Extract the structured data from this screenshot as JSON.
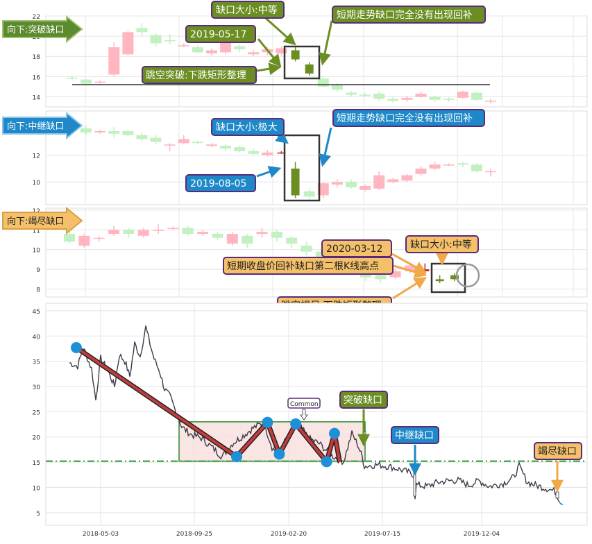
{
  "chart_data": [
    {
      "type": "candlestick",
      "panel": "top",
      "tag": "向下:突破缺口",
      "ylim": [
        13,
        22
      ],
      "yticks": [
        14,
        16,
        18,
        20,
        22
      ],
      "grid": true,
      "hline": 15.2,
      "candles": [
        [
          15.9,
          15.8,
          16.1,
          15.6
        ],
        [
          15.7,
          15.3,
          15.8,
          15.2
        ],
        [
          15.4,
          15.5,
          15.6,
          15.3
        ],
        [
          16.2,
          18.9,
          19.4,
          16.0
        ],
        [
          18.2,
          20.4,
          20.5,
          18.1
        ],
        [
          20.8,
          20.4,
          21.3,
          20.0
        ],
        [
          20.1,
          19.3,
          20.3,
          19.0
        ],
        [
          19.6,
          19.5,
          20.2,
          19.2
        ],
        [
          19.0,
          19.1,
          19.3,
          18.9
        ],
        [
          18.9,
          18.4,
          19.1,
          18.3
        ],
        [
          18.3,
          18.6,
          18.8,
          18.1
        ],
        [
          18.4,
          19.5,
          19.7,
          18.2
        ],
        [
          19.0,
          18.7,
          19.2,
          18.4
        ],
        [
          18.2,
          18.4,
          18.6,
          18.0
        ],
        [
          18.4,
          18.7,
          18.9,
          18.1
        ],
        [
          18.3,
          18.8,
          19.0,
          18.1
        ],
        [
          18.6,
          17.7,
          18.9,
          17.5
        ],
        [
          17.2,
          16.3,
          17.4,
          16.1
        ],
        [
          15.8,
          15.0,
          16.0,
          14.9
        ],
        [
          15.2,
          14.7,
          15.4,
          14.5
        ],
        [
          14.4,
          14.2,
          14.6,
          14.0
        ],
        [
          14.2,
          14.1,
          14.4,
          14.0
        ],
        [
          14.3,
          13.8,
          14.5,
          13.6
        ],
        [
          13.8,
          13.6,
          14.0,
          13.4
        ],
        [
          13.7,
          13.9,
          14.1,
          13.5
        ],
        [
          14.0,
          14.3,
          14.5,
          13.9
        ],
        [
          14.0,
          13.7,
          14.1,
          13.5
        ],
        [
          13.8,
          13.7,
          14.0,
          13.5
        ],
        [
          13.9,
          14.5,
          14.6,
          13.8
        ],
        [
          14.4,
          13.7,
          14.5,
          13.6
        ],
        [
          13.6,
          13.6,
          13.8,
          13.3
        ]
      ],
      "annotations": [
        "缺口大小:中等",
        "2019-05-17",
        "跳空突破:下跌矩形整理",
        "短期走势缺口完全没有出现回补"
      ]
    },
    {
      "type": "candlestick",
      "panel": "second",
      "tag": "向下:中继缺口",
      "ylim": [
        8.3,
        15.3
      ],
      "yticks": [
        10,
        12
      ],
      "grid": true,
      "candles": [
        [
          14.0,
          13.7,
          14.2,
          13.5
        ],
        [
          13.7,
          13.8,
          13.9,
          13.6
        ],
        [
          13.8,
          13.6,
          14.1,
          13.3
        ],
        [
          13.8,
          13.5,
          13.9,
          13.4
        ],
        [
          13.5,
          13.2,
          13.7,
          13.0
        ],
        [
          13.3,
          13.0,
          13.5,
          12.8
        ],
        [
          12.8,
          12.8,
          12.9,
          12.3
        ],
        [
          12.9,
          13.2,
          13.5,
          12.8
        ],
        [
          13.0,
          12.9,
          13.1,
          12.8
        ],
        [
          12.7,
          12.8,
          12.9,
          12.6
        ],
        [
          12.7,
          12.5,
          12.8,
          12.3
        ],
        [
          12.6,
          12.3,
          12.7,
          12.2
        ],
        [
          12.3,
          12.1,
          12.5,
          12.0
        ],
        [
          12.0,
          12.2,
          12.4,
          11.9
        ],
        [
          12.2,
          12.2,
          12.3,
          12.1
        ],
        [
          11.0,
          9.0,
          11.5,
          8.8
        ],
        [
          9.3,
          8.9,
          9.5,
          8.7
        ],
        [
          9.0,
          9.9,
          10.0,
          8.8
        ],
        [
          9.8,
          10.0,
          10.2,
          9.6
        ],
        [
          10.0,
          9.6,
          10.2,
          9.5
        ],
        [
          9.4,
          9.7,
          9.8,
          9.3
        ],
        [
          9.5,
          10.5,
          10.8,
          9.4
        ],
        [
          10.0,
          10.2,
          10.3,
          9.9
        ],
        [
          10.1,
          10.5,
          10.6,
          10.0
        ],
        [
          10.6,
          11.0,
          11.2,
          10.5
        ],
        [
          11.0,
          11.3,
          11.5,
          10.9
        ],
        [
          11.3,
          11.3,
          11.4,
          11.2
        ],
        [
          11.4,
          11.3,
          11.5,
          11.1
        ],
        [
          11.3,
          10.8,
          11.4,
          10.7
        ],
        [
          10.8,
          10.8,
          11.0,
          10.4
        ]
      ],
      "annotations": [
        "缺口大小:极大",
        "短期走势缺口完全没有出现回补",
        "2019-08-05"
      ]
    },
    {
      "type": "candlestick",
      "panel": "third",
      "tag": "向下:竭尽缺口",
      "ylim": [
        7.6,
        12.1
      ],
      "yticks": [
        8,
        9,
        10,
        11,
        12
      ],
      "grid": true,
      "candles": [
        [
          10.8,
          10.4,
          11.0,
          10.3
        ],
        [
          10.2,
          10.7,
          10.8,
          10.1
        ],
        [
          10.6,
          10.6,
          10.7,
          10.4
        ],
        [
          10.8,
          11.0,
          11.2,
          10.7
        ],
        [
          11.0,
          10.8,
          11.1,
          10.6
        ],
        [
          10.7,
          11.0,
          11.1,
          10.6
        ],
        [
          11.0,
          11.0,
          11.3,
          10.8
        ],
        [
          11.1,
          11.1,
          11.2,
          11.0
        ],
        [
          11.1,
          10.8,
          11.2,
          10.7
        ],
        [
          10.8,
          10.9,
          11.0,
          10.7
        ],
        [
          10.8,
          10.6,
          10.9,
          10.5
        ],
        [
          10.3,
          10.8,
          10.9,
          10.2
        ],
        [
          10.7,
          10.3,
          10.8,
          10.1
        ],
        [
          10.8,
          10.9,
          11.1,
          10.6
        ],
        [
          10.9,
          10.6,
          11.0,
          10.4
        ],
        [
          10.6,
          10.3,
          10.7,
          10.1
        ],
        [
          10.2,
          9.9,
          10.4,
          9.7
        ],
        [
          9.9,
          9.5,
          10.0,
          9.4
        ],
        [
          9.4,
          9.3,
          9.6,
          9.1
        ],
        [
          9.3,
          9.0,
          9.4,
          8.9
        ],
        [
          8.9,
          8.6,
          9.1,
          8.4
        ],
        [
          8.7,
          8.5,
          8.8,
          8.3
        ],
        [
          8.6,
          8.9,
          9.0,
          8.5
        ],
        [
          8.9,
          9.2,
          9.3,
          8.8
        ],
        [
          8.9,
          9.0,
          9.3,
          8.8
        ],
        [
          8.4,
          8.5,
          8.7,
          8.3
        ],
        [
          8.5,
          8.7,
          8.8,
          8.4
        ]
      ],
      "annotations": [
        "2020-03-12",
        "缺口大小:中等",
        "短期收盘价回补缺口第二根K线高点",
        "跳空竭尽:下跌矩形整理"
      ]
    },
    {
      "type": "line",
      "panel": "main",
      "ylim": [
        2.5,
        46.5
      ],
      "yticks": [
        5,
        10,
        15,
        20,
        25,
        30,
        35,
        40,
        45
      ],
      "xticks": [
        "2018-05-03",
        "2018-09-25",
        "2019-02-20",
        "2019-07-15",
        "2019-12-04"
      ],
      "grid": true,
      "support_level": 15.2,
      "rectangle_range": [
        15.2,
        23.0
      ],
      "pivots": [
        {
          "date": "2018-03-27",
          "value": 37.7
        },
        {
          "date": "2018-11-26",
          "value": 16.1
        },
        {
          "date": "2019-01-12",
          "value": 22.9
        },
        {
          "date": "2019-01-30",
          "value": 16.6
        },
        {
          "date": "2019-02-24",
          "value": 22.6
        },
        {
          "date": "2019-04-12",
          "value": 15.1
        },
        {
          "date": "2019-04-24",
          "value": 20.7
        }
      ],
      "annotations": [
        "Common",
        "突破缺口",
        "中继缺口",
        "竭尽缺口"
      ]
    }
  ]
}
